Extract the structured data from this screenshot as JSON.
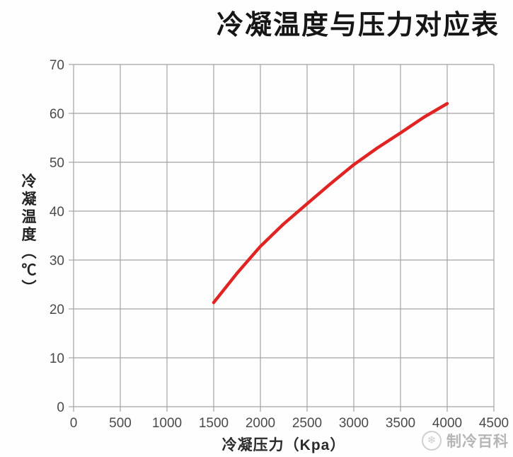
{
  "page": {
    "background": "#ffffff"
  },
  "watermark": {
    "text": "制冷百科",
    "logo": "snowflake-icon"
  },
  "chart_data": {
    "type": "line",
    "title": "冷凝温度与压力对应表",
    "xlabel": "冷凝压力（Kpa）",
    "ylabel": "冷凝温度（℃）",
    "xlim": [
      0,
      4500
    ],
    "ylim": [
      0,
      70
    ],
    "x_ticks": [
      0,
      500,
      1000,
      1500,
      2000,
      2500,
      3000,
      3500,
      4000,
      4500
    ],
    "y_ticks": [
      0,
      10,
      20,
      30,
      40,
      50,
      60,
      70
    ],
    "grid": true,
    "legend": false,
    "colors": {
      "line": "#e02424",
      "grid": "#a3a3a3",
      "tick_text": "#4a4a4a"
    },
    "series": [
      {
        "name": "冷凝温度",
        "x": [
          1500,
          1750,
          2000,
          2250,
          2500,
          2750,
          3000,
          3250,
          3500,
          3750,
          4000
        ],
        "y": [
          21.3,
          27.3,
          32.8,
          37.4,
          41.5,
          45.6,
          49.5,
          52.9,
          56.0,
          59.2,
          62.0
        ]
      }
    ]
  }
}
